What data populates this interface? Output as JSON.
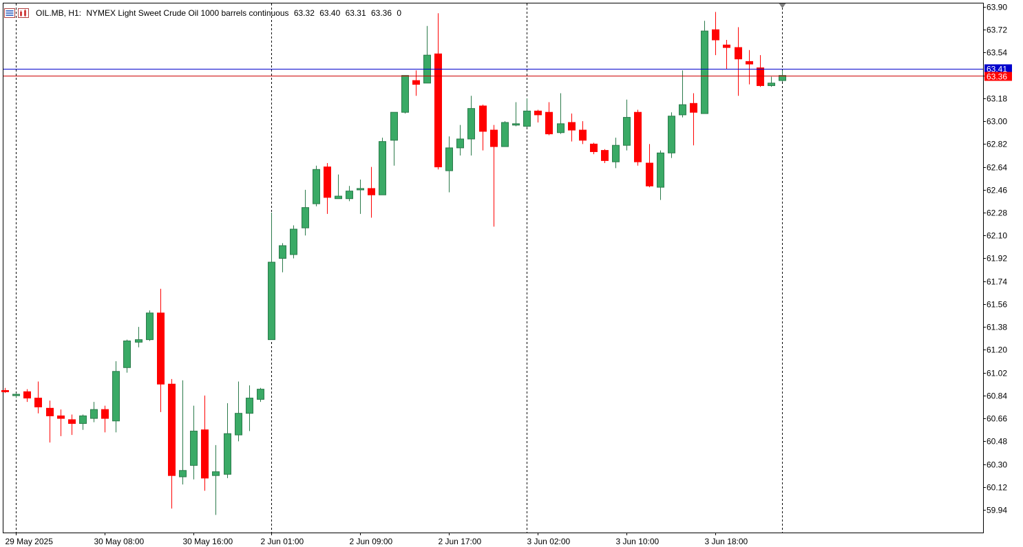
{
  "header": {
    "symbol": "OIL.MB, H1:",
    "description": "NYMEX Light Sweet Crude Oil 1000 barrels continuous",
    "open": "63.32",
    "high": "63.40",
    "low": "63.31",
    "close": "63.36",
    "volume": "0"
  },
  "icons": {
    "menu": "quick-trade-icon",
    "indicators": "indicators-icon"
  },
  "colors": {
    "bull": "#3aaa66",
    "bear": "#ff0000",
    "ask_line": "#0000cc",
    "bid_line": "#cc0000",
    "grid": "#000000"
  },
  "chart_data": {
    "type": "candlestick",
    "timeframe": "H1",
    "ylim": [
      59.85,
      63.9
    ],
    "y_ticks": [
      "63.90",
      "63.72",
      "63.54",
      "63.36",
      "63.18",
      "63.00",
      "62.82",
      "62.64",
      "62.46",
      "62.28",
      "62.10",
      "61.92",
      "61.74",
      "61.56",
      "61.38",
      "61.20",
      "61.02",
      "60.84",
      "60.66",
      "60.48",
      "60.30",
      "60.12",
      "59.94"
    ],
    "x_labels": [
      {
        "index": 1,
        "label": "29 May 2025"
      },
      {
        "index": 9,
        "label": "30 May 08:00"
      },
      {
        "index": 17,
        "label": "30 May 16:00"
      },
      {
        "index": 24,
        "label": "2 Jun 01:00"
      },
      {
        "index": 32,
        "label": "2 Jun 09:00"
      },
      {
        "index": 40,
        "label": "2 Jun 17:00"
      },
      {
        "index": 48,
        "label": "3 Jun 02:00"
      },
      {
        "index": 56,
        "label": "3 Jun 10:00"
      },
      {
        "index": 64,
        "label": "3 Jun 18:00"
      }
    ],
    "period_separators": [
      1,
      24,
      47,
      70
    ],
    "ask_price": "63.41",
    "bid_price": "63.36",
    "candles": [
      {
        "o": 60.88,
        "h": 60.9,
        "l": 60.86,
        "c": 60.87
      },
      {
        "o": 60.84,
        "h": 60.86,
        "l": 60.82,
        "c": 60.85
      },
      {
        "o": 60.87,
        "h": 60.89,
        "l": 60.79,
        "c": 60.82
      },
      {
        "o": 60.82,
        "h": 60.95,
        "l": 60.7,
        "c": 60.75
      },
      {
        "o": 60.74,
        "h": 60.8,
        "l": 60.47,
        "c": 60.68
      },
      {
        "o": 60.68,
        "h": 60.73,
        "l": 60.52,
        "c": 60.66
      },
      {
        "o": 60.65,
        "h": 60.69,
        "l": 60.53,
        "c": 60.62
      },
      {
        "o": 60.62,
        "h": 60.69,
        "l": 60.57,
        "c": 60.68
      },
      {
        "o": 60.66,
        "h": 60.79,
        "l": 60.63,
        "c": 60.73
      },
      {
        "o": 60.73,
        "h": 60.76,
        "l": 60.55,
        "c": 60.66
      },
      {
        "o": 60.64,
        "h": 61.11,
        "l": 60.55,
        "c": 61.03
      },
      {
        "o": 61.06,
        "h": 61.28,
        "l": 61.02,
        "c": 61.27
      },
      {
        "o": 61.26,
        "h": 61.38,
        "l": 61.22,
        "c": 61.28
      },
      {
        "o": 61.28,
        "h": 61.51,
        "l": 61.27,
        "c": 61.49
      },
      {
        "o": 61.49,
        "h": 61.68,
        "l": 60.71,
        "c": 60.93
      },
      {
        "o": 60.93,
        "h": 60.97,
        "l": 59.95,
        "c": 60.21
      },
      {
        "o": 60.2,
        "h": 60.96,
        "l": 60.14,
        "c": 60.25
      },
      {
        "o": 60.29,
        "h": 60.76,
        "l": 60.18,
        "c": 60.56
      },
      {
        "o": 60.57,
        "h": 60.84,
        "l": 60.09,
        "c": 60.19
      },
      {
        "o": 60.21,
        "h": 60.45,
        "l": 59.9,
        "c": 60.24
      },
      {
        "o": 60.22,
        "h": 60.78,
        "l": 60.19,
        "c": 60.54
      },
      {
        "o": 60.53,
        "h": 60.95,
        "l": 60.48,
        "c": 60.7
      },
      {
        "o": 60.7,
        "h": 60.92,
        "l": 60.56,
        "c": 60.82
      },
      {
        "o": 60.81,
        "h": 60.9,
        "l": 60.79,
        "c": 60.89
      },
      {
        "o": 61.28,
        "h": 62.28,
        "l": 61.28,
        "c": 61.89
      },
      {
        "o": 61.92,
        "h": 62.04,
        "l": 61.81,
        "c": 62.02
      },
      {
        "o": 61.95,
        "h": 62.18,
        "l": 61.92,
        "c": 62.15
      },
      {
        "o": 62.16,
        "h": 62.46,
        "l": 62.1,
        "c": 62.32
      },
      {
        "o": 62.35,
        "h": 62.65,
        "l": 62.33,
        "c": 62.62
      },
      {
        "o": 62.64,
        "h": 62.67,
        "l": 62.27,
        "c": 62.4
      },
      {
        "o": 62.39,
        "h": 62.58,
        "l": 62.39,
        "c": 62.41
      },
      {
        "o": 62.39,
        "h": 62.49,
        "l": 62.37,
        "c": 62.45
      },
      {
        "o": 62.46,
        "h": 62.54,
        "l": 62.27,
        "c": 62.47
      },
      {
        "o": 62.47,
        "h": 62.64,
        "l": 62.24,
        "c": 62.42
      },
      {
        "o": 62.42,
        "h": 62.87,
        "l": 62.42,
        "c": 62.84
      },
      {
        "o": 62.85,
        "h": 63.06,
        "l": 62.65,
        "c": 63.07
      },
      {
        "o": 63.07,
        "h": 63.34,
        "l": 63.06,
        "c": 63.36
      },
      {
        "o": 63.32,
        "h": 63.4,
        "l": 63.2,
        "c": 63.29
      },
      {
        "o": 63.3,
        "h": 63.75,
        "l": 63.3,
        "c": 63.52
      },
      {
        "o": 63.53,
        "h": 63.85,
        "l": 62.62,
        "c": 62.64
      },
      {
        "o": 62.61,
        "h": 62.88,
        "l": 62.44,
        "c": 62.79
      },
      {
        "o": 62.79,
        "h": 62.97,
        "l": 62.73,
        "c": 62.86
      },
      {
        "o": 62.86,
        "h": 63.2,
        "l": 62.73,
        "c": 63.1
      },
      {
        "o": 63.12,
        "h": 63.13,
        "l": 62.77,
        "c": 62.92
      },
      {
        "o": 62.93,
        "h": 62.97,
        "l": 62.17,
        "c": 62.8
      },
      {
        "o": 62.8,
        "h": 63.0,
        "l": 62.81,
        "c": 62.99
      },
      {
        "o": 62.98,
        "h": 63.15,
        "l": 62.96,
        "c": 62.98
      },
      {
        "o": 62.96,
        "h": 63.18,
        "l": 62.95,
        "c": 63.08
      },
      {
        "o": 63.08,
        "h": 63.09,
        "l": 62.99,
        "c": 63.05
      },
      {
        "o": 63.07,
        "h": 63.15,
        "l": 62.89,
        "c": 62.9
      },
      {
        "o": 62.91,
        "h": 63.22,
        "l": 62.9,
        "c": 62.98
      },
      {
        "o": 62.99,
        "h": 63.06,
        "l": 62.84,
        "c": 62.93
      },
      {
        "o": 62.93,
        "h": 63.0,
        "l": 62.82,
        "c": 62.85
      },
      {
        "o": 62.82,
        "h": 62.83,
        "l": 62.74,
        "c": 62.76
      },
      {
        "o": 62.77,
        "h": 62.78,
        "l": 62.67,
        "c": 62.69
      },
      {
        "o": 62.68,
        "h": 62.87,
        "l": 62.63,
        "c": 62.81
      },
      {
        "o": 62.81,
        "h": 63.17,
        "l": 62.77,
        "c": 63.03
      },
      {
        "o": 63.07,
        "h": 63.09,
        "l": 62.65,
        "c": 62.68
      },
      {
        "o": 62.67,
        "h": 62.82,
        "l": 62.48,
        "c": 62.49
      },
      {
        "o": 62.48,
        "h": 62.77,
        "l": 62.38,
        "c": 62.75
      },
      {
        "o": 62.75,
        "h": 63.07,
        "l": 62.71,
        "c": 63.04
      },
      {
        "o": 63.05,
        "h": 63.4,
        "l": 63.03,
        "c": 63.13
      },
      {
        "o": 63.14,
        "h": 63.22,
        "l": 62.81,
        "c": 63.07
      },
      {
        "o": 63.06,
        "h": 63.79,
        "l": 63.06,
        "c": 63.71
      },
      {
        "o": 63.72,
        "h": 63.86,
        "l": 63.52,
        "c": 63.64
      },
      {
        "o": 63.6,
        "h": 63.64,
        "l": 63.41,
        "c": 63.58
      },
      {
        "o": 63.58,
        "h": 63.74,
        "l": 63.2,
        "c": 63.49
      },
      {
        "o": 63.47,
        "h": 63.56,
        "l": 63.29,
        "c": 63.45
      },
      {
        "o": 63.42,
        "h": 63.52,
        "l": 63.27,
        "c": 63.28
      },
      {
        "o": 63.28,
        "h": 63.35,
        "l": 63.27,
        "c": 63.3
      },
      {
        "o": 63.32,
        "h": 63.4,
        "l": 63.31,
        "c": 63.36
      }
    ]
  }
}
